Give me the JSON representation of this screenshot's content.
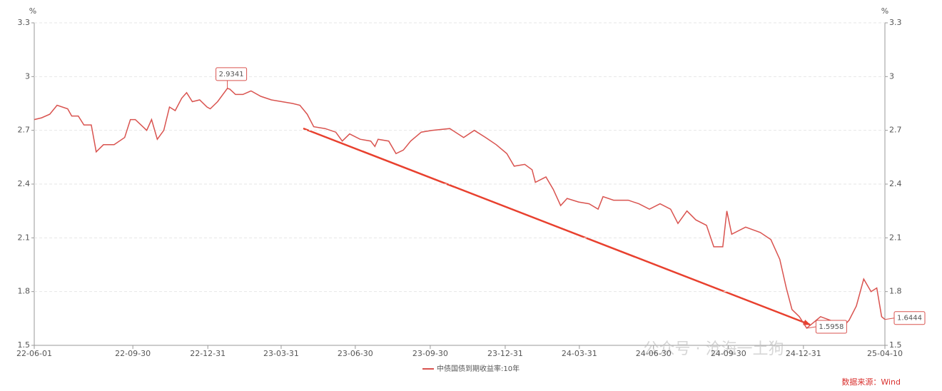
{
  "chart_data": {
    "type": "line",
    "y_unit": "%",
    "y2_unit": "%",
    "x": [
      "22-06-01",
      "22-06-10",
      "22-06-20",
      "22-06-29",
      "22-07-12",
      "22-07-17",
      "22-07-25",
      "22-08-01",
      "22-08-10",
      "22-08-16",
      "22-08-25",
      "22-09-07",
      "22-09-20",
      "22-09-27",
      "22-10-03",
      "22-10-17",
      "22-10-23",
      "22-10-30",
      "22-11-07",
      "22-11-14",
      "22-11-21",
      "22-11-29",
      "22-12-05",
      "22-12-12",
      "22-12-21",
      "22-12-30",
      "23-01-03",
      "23-01-12",
      "23-01-24",
      "23-01-27",
      "23-02-03",
      "23-02-12",
      "23-02-22",
      "23-03-06",
      "23-03-19",
      "23-04-01",
      "23-04-14",
      "23-04-23",
      "23-05-02",
      "23-05-10",
      "23-05-24",
      "23-06-06",
      "23-06-14",
      "23-06-23",
      "23-07-06",
      "23-07-19",
      "23-07-24",
      "23-07-28",
      "23-08-10",
      "23-08-19",
      "23-08-28",
      "23-09-06",
      "23-09-19",
      "23-10-02",
      "23-10-24",
      "23-11-10",
      "23-11-23",
      "23-12-07",
      "23-12-20",
      "24-01-02",
      "24-01-11",
      "24-01-24",
      "24-02-02",
      "24-02-06",
      "24-02-19",
      "24-02-28",
      "24-03-08",
      "24-03-16",
      "24-03-30",
      "24-04-12",
      "24-04-23",
      "24-04-29",
      "24-05-12",
      "24-05-30",
      "24-06-12",
      "24-06-25",
      "24-07-08",
      "24-07-21",
      "24-07-30",
      "24-08-10",
      "24-08-21",
      "24-09-03",
      "24-09-12",
      "24-09-23",
      "24-09-28",
      "24-10-04",
      "24-10-21",
      "24-11-08",
      "24-11-21",
      "24-12-02",
      "24-12-10",
      "24-12-17",
      "24-12-26",
      "25-01-04",
      "25-01-13",
      "25-01-21",
      "25-02-08",
      "25-02-17",
      "25-02-25",
      "25-03-06",
      "25-03-15",
      "25-03-24",
      "25-03-31",
      "25-04-06",
      "25-04-10"
    ],
    "series": [
      {
        "name": "中债国债到期收益率:10年",
        "color": "#d9534f",
        "values": [
          2.76,
          2.77,
          2.79,
          2.84,
          2.82,
          2.78,
          2.78,
          2.73,
          2.73,
          2.58,
          2.62,
          2.62,
          2.66,
          2.76,
          2.76,
          2.7,
          2.76,
          2.65,
          2.7,
          2.83,
          2.81,
          2.88,
          2.91,
          2.86,
          2.87,
          2.83,
          2.82,
          2.86,
          2.9341,
          2.93,
          2.9,
          2.9,
          2.92,
          2.89,
          2.87,
          2.86,
          2.85,
          2.84,
          2.79,
          2.72,
          2.71,
          2.69,
          2.64,
          2.68,
          2.65,
          2.64,
          2.61,
          2.65,
          2.64,
          2.57,
          2.59,
          2.64,
          2.69,
          2.7,
          2.71,
          2.66,
          2.7,
          2.66,
          2.62,
          2.57,
          2.5,
          2.51,
          2.48,
          2.41,
          2.44,
          2.37,
          2.28,
          2.32,
          2.3,
          2.29,
          2.26,
          2.33,
          2.31,
          2.31,
          2.29,
          2.26,
          2.29,
          2.26,
          2.18,
          2.25,
          2.2,
          2.17,
          2.05,
          2.05,
          2.25,
          2.12,
          2.16,
          2.13,
          2.09,
          1.98,
          1.82,
          1.7,
          1.66,
          1.5958,
          1.63,
          1.66,
          1.63,
          1.6,
          1.64,
          1.72,
          1.87,
          1.8,
          1.82,
          1.66,
          1.6444
        ]
      }
    ],
    "annotations": [
      {
        "x": "23-01-24",
        "value": 2.9341
      },
      {
        "x": "25-01-04",
        "value": 1.5958
      },
      {
        "x": "25-04-10",
        "value": 1.6444
      }
    ],
    "xlim": [
      "22-06-01",
      "25-04-10"
    ],
    "xticks": [
      "22-06-01",
      "22-09-30",
      "22-12-31",
      "23-03-31",
      "23-06-30",
      "23-09-30",
      "23-12-31",
      "24-03-31",
      "24-06-30",
      "24-09-30",
      "24-12-31",
      "25-04-10"
    ],
    "ylim": [
      1.5,
      3.3
    ],
    "yticks": [
      1.5,
      1.8,
      2.1,
      2.4,
      2.7,
      3,
      3.3
    ],
    "y2lim": [
      1.5,
      3.3
    ],
    "y2ticks": [
      1.5,
      1.8,
      2.1,
      2.4,
      2.7,
      3,
      3.3
    ],
    "grid": true,
    "source": "数据来源：Wind",
    "watermark": "公众号 · 沧海一土狗"
  }
}
